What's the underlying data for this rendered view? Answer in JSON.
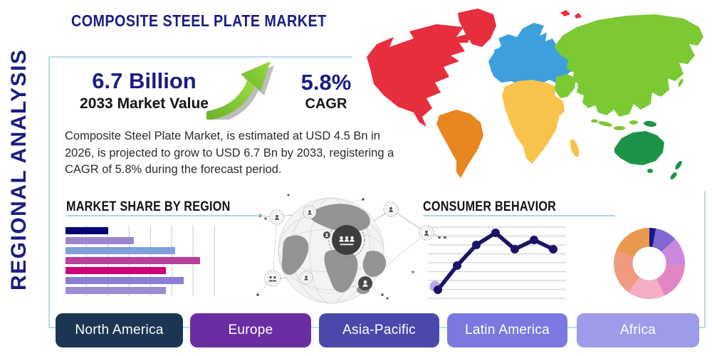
{
  "page": {
    "title": "COMPOSITE STEEL PLATE MARKET",
    "side_label": "REGIONAL ANALYSIS"
  },
  "colors": {
    "title_navy": "#1c1c80",
    "box_border": "#b7dcec",
    "heading_underline": "#a9d6e9",
    "growth_arrow_green": "#8ccb35"
  },
  "stats": {
    "market_value": "6.7 Billion",
    "market_value_label": "2033 Market Value",
    "cagr_value": "5.8%",
    "cagr_label": "CAGR"
  },
  "description": "Composite Steel Plate Market, is estimated at USD 4.5 Bn in 2026, is projected to grow to USD 6.7 Bn by 2033, registering a CAGR of 5.8% during the forecast period.",
  "sections": {
    "market_share_heading": "MARKET SHARE BY REGION",
    "consumer_behavior_heading": "CONSUMER BEHAVIOR"
  },
  "chart_data": [
    {
      "type": "bar",
      "title": "MARKET SHARE BY REGION",
      "orientation": "horizontal",
      "categories": [
        "",
        "",
        "",
        "",
        "",
        "",
        ""
      ],
      "values": [
        29,
        46,
        74,
        91,
        68,
        80,
        68
      ],
      "colors": [
        "#050573",
        "#9b85cc",
        "#7f9fdd",
        "#b9409b",
        "#cc0077",
        "#8a7fd4",
        "#9d8bd4"
      ],
      "xlim": [
        0,
        100
      ],
      "grid": "vertical",
      "legend": "none"
    },
    {
      "type": "line",
      "title": "CONSUMER BEHAVIOR",
      "x": [
        1,
        2,
        3,
        4,
        5,
        6,
        7
      ],
      "values": [
        12,
        46,
        75,
        92,
        69,
        82,
        69
      ],
      "ylim": [
        0,
        100
      ],
      "line_color": "#1b1464",
      "ghost_point_color": "#b5a3e6",
      "grid": "horizontal",
      "legend": "none"
    },
    {
      "type": "pie",
      "donut": true,
      "title": "",
      "values": [
        3,
        10,
        13,
        17,
        17,
        21,
        19
      ],
      "colors": [
        "#18188c",
        "#8268d1",
        "#c98ade",
        "#e287c3",
        "#f3aec3",
        "#f09a82",
        "#e9994d"
      ],
      "legend": "none"
    }
  ],
  "map": {
    "icon": "world-map",
    "colors": {
      "north_america": "#e62e3c",
      "greenland": "#e62e3c",
      "south_america": "#e8861f",
      "europe": "#3da0dc",
      "africa": "#f7c34a",
      "asia": "#7cc934",
      "australia": "#1d9348"
    }
  },
  "globe": {
    "icon": "global-network-globe"
  },
  "region_buttons": [
    {
      "label": "North America",
      "color": "#1b3553"
    },
    {
      "label": "Europe",
      "color": "#6a2da2"
    },
    {
      "label": "Asia-Pacific",
      "color": "#4b48ab"
    },
    {
      "label": "Latin America",
      "color": "#7b79e1"
    },
    {
      "label": "Africa",
      "color": "#9e9be9"
    }
  ]
}
